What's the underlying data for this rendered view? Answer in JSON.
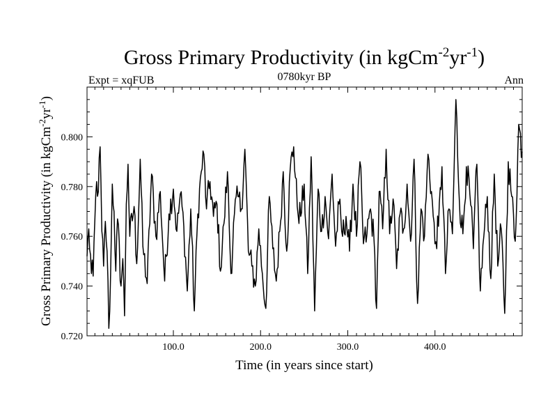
{
  "chart_data": {
    "type": "line",
    "title": "Gross Primary Productivity (in kgCm",
    "title_sup1": "-2",
    "title_mid": "yr",
    "title_sup2": "-1",
    "title_end": ")",
    "left_label": "Expt = xqFUB",
    "center_label": "0780kyr BP",
    "right_label": "Ann",
    "xlabel": "Time (in years since start)",
    "ylabel": "Gross Primary Productivity (in kgCm",
    "ylabel_sup1": "-2",
    "ylabel_mid": "yr",
    "ylabel_sup2": "-1",
    "ylabel_end": ")",
    "xlim": [
      1,
      500
    ],
    "ylim": [
      0.72,
      0.82
    ],
    "xticks": [
      100,
      200,
      300,
      400
    ],
    "xtick_labels": [
      "100.0",
      "200.0",
      "300.0",
      "400.0"
    ],
    "yticks": [
      0.72,
      0.74,
      0.76,
      0.78,
      0.8
    ],
    "ytick_labels": [
      "0.720",
      "0.740",
      "0.760",
      "0.780",
      "0.800"
    ],
    "series": [
      {
        "name": "Gross Primary Productivity",
        "anchors": [
          [
            1,
            0.752
          ],
          [
            3,
            0.763
          ],
          [
            6,
            0.745
          ],
          [
            8,
            0.744
          ],
          [
            10,
            0.767
          ],
          [
            12,
            0.782
          ],
          [
            14,
            0.778
          ],
          [
            16,
            0.796
          ],
          [
            18,
            0.762
          ],
          [
            20,
            0.748
          ],
          [
            22,
            0.766
          ],
          [
            24,
            0.754
          ],
          [
            26,
            0.723
          ],
          [
            28,
            0.744
          ],
          [
            30,
            0.781
          ],
          [
            32,
            0.77
          ],
          [
            34,
            0.746
          ],
          [
            36,
            0.767
          ],
          [
            40,
            0.74
          ],
          [
            42,
            0.751
          ],
          [
            44,
            0.728
          ],
          [
            46,
            0.773
          ],
          [
            48,
            0.789
          ],
          [
            50,
            0.76
          ],
          [
            55,
            0.772
          ],
          [
            58,
            0.749
          ],
          [
            62,
            0.791
          ],
          [
            65,
            0.756
          ],
          [
            70,
            0.741
          ],
          [
            75,
            0.785
          ],
          [
            80,
            0.76
          ],
          [
            85,
            0.778
          ],
          [
            90,
            0.742
          ],
          [
            95,
            0.769
          ],
          [
            100,
            0.779
          ],
          [
            104,
            0.762
          ],
          [
            108,
            0.777
          ],
          [
            112,
            0.764
          ],
          [
            116,
            0.738
          ],
          [
            120,
            0.771
          ],
          [
            124,
            0.73
          ],
          [
            128,
            0.769
          ],
          [
            132,
            0.786
          ],
          [
            135,
            0.793
          ],
          [
            138,
            0.771
          ],
          [
            142,
            0.782
          ],
          [
            146,
            0.768
          ],
          [
            150,
            0.773
          ],
          [
            154,
            0.746
          ],
          [
            158,
            0.765
          ],
          [
            162,
            0.786
          ],
          [
            166,
            0.745
          ],
          [
            170,
            0.769
          ],
          [
            174,
            0.776
          ],
          [
            178,
            0.771
          ],
          [
            182,
            0.795
          ],
          [
            186,
            0.754
          ],
          [
            190,
            0.748
          ],
          [
            194,
            0.74
          ],
          [
            198,
            0.763
          ],
          [
            202,
            0.745
          ],
          [
            206,
            0.731
          ],
          [
            210,
            0.776
          ],
          [
            214,
            0.755
          ],
          [
            218,
            0.742
          ],
          [
            222,
            0.762
          ],
          [
            226,
            0.786
          ],
          [
            230,
            0.754
          ],
          [
            234,
            0.787
          ],
          [
            238,
            0.796
          ],
          [
            242,
            0.772
          ],
          [
            246,
            0.768
          ],
          [
            250,
            0.781
          ],
          [
            254,
            0.745
          ],
          [
            258,
            0.792
          ],
          [
            262,
            0.73
          ],
          [
            266,
            0.779
          ],
          [
            270,
            0.762
          ],
          [
            274,
            0.776
          ],
          [
            278,
            0.759
          ],
          [
            282,
            0.785
          ],
          [
            286,
            0.756
          ],
          [
            290,
            0.773
          ],
          [
            294,
            0.76
          ],
          [
            298,
            0.768
          ],
          [
            302,
            0.754
          ],
          [
            306,
            0.781
          ],
          [
            310,
            0.76
          ],
          [
            314,
            0.79
          ],
          [
            318,
            0.757
          ],
          [
            322,
            0.761
          ],
          [
            326,
            0.771
          ],
          [
            330,
            0.759
          ],
          [
            333,
            0.731
          ],
          [
            336,
            0.778
          ],
          [
            340,
            0.763
          ],
          [
            344,
            0.795
          ],
          [
            348,
            0.761
          ],
          [
            352,
            0.775
          ],
          [
            356,
            0.747
          ],
          [
            360,
            0.769
          ],
          [
            364,
            0.763
          ],
          [
            368,
            0.781
          ],
          [
            372,
            0.758
          ],
          [
            376,
            0.791
          ],
          [
            380,
            0.733
          ],
          [
            384,
            0.771
          ],
          [
            388,
            0.76
          ],
          [
            392,
            0.793
          ],
          [
            396,
            0.778
          ],
          [
            400,
            0.757
          ],
          [
            404,
            0.764
          ],
          [
            408,
            0.788
          ],
          [
            412,
            0.745
          ],
          [
            416,
            0.771
          ],
          [
            420,
            0.761
          ],
          [
            424,
            0.815
          ],
          [
            428,
            0.774
          ],
          [
            432,
            0.761
          ],
          [
            436,
            0.788
          ],
          [
            440,
            0.777
          ],
          [
            444,
            0.755
          ],
          [
            448,
            0.789
          ],
          [
            452,
            0.738
          ],
          [
            456,
            0.76
          ],
          [
            460,
            0.776
          ],
          [
            464,
            0.743
          ],
          [
            468,
            0.785
          ],
          [
            472,
            0.748
          ],
          [
            476,
            0.763
          ],
          [
            480,
            0.729
          ],
          [
            484,
            0.79
          ],
          [
            488,
            0.776
          ],
          [
            492,
            0.758
          ],
          [
            496,
            0.805
          ],
          [
            500,
            0.794
          ]
        ]
      }
    ],
    "grid": false,
    "line_color": "#000000"
  }
}
